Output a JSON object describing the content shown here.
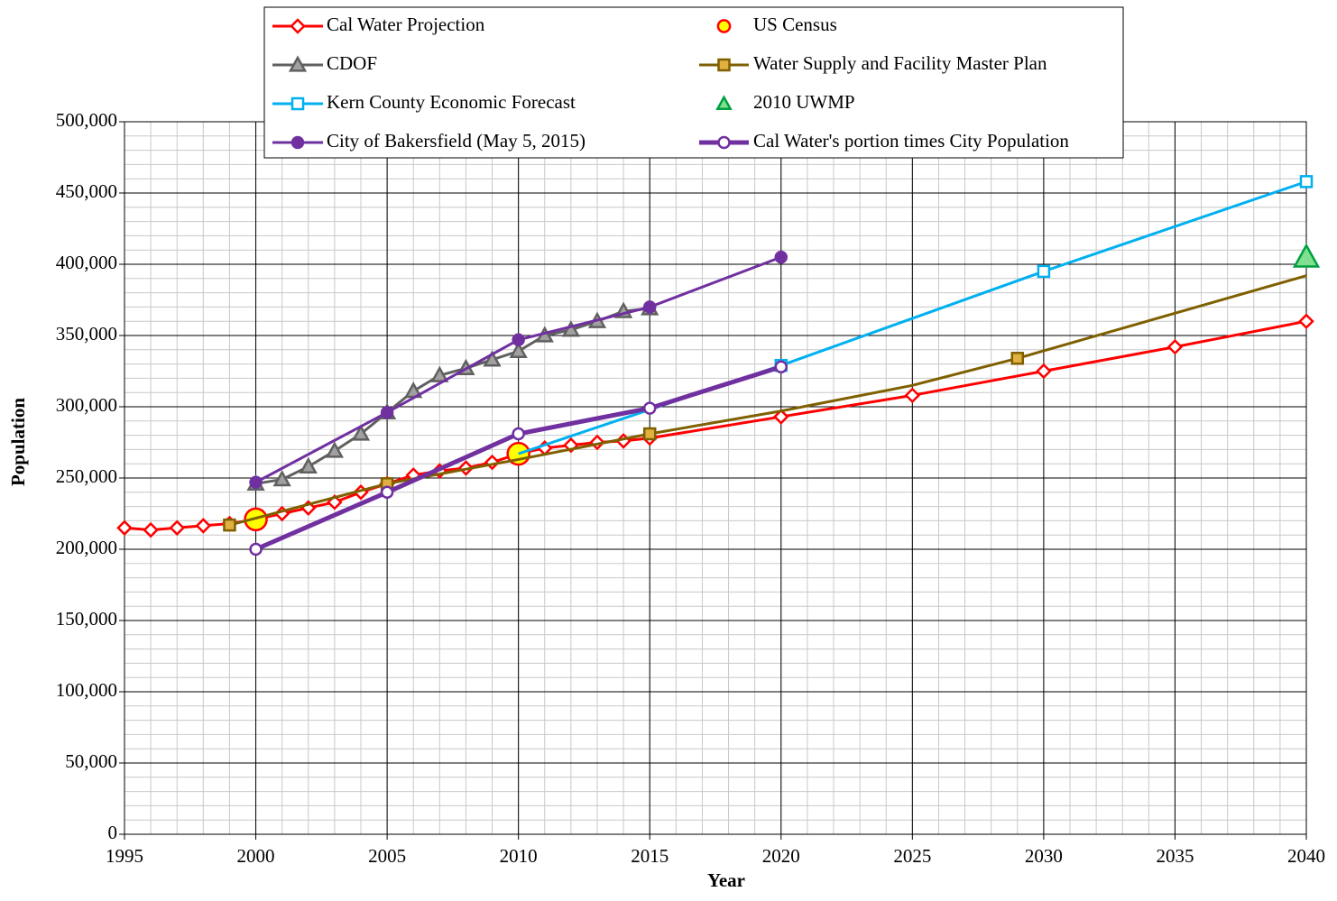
{
  "chart_data": {
    "type": "line",
    "xlabel": "Year",
    "ylabel": "Population",
    "xlim": [
      1995,
      2040
    ],
    "xticks": [
      1995,
      2000,
      2005,
      2010,
      2015,
      2020,
      2025,
      2030,
      2035,
      2040
    ],
    "ylim": [
      0,
      500000
    ],
    "yticks": [
      {
        "value": 0,
        "label": "0"
      },
      {
        "value": 50000,
        "label": "50,000"
      },
      {
        "value": 100000,
        "label": "100,000"
      },
      {
        "value": 150000,
        "label": "150,000"
      },
      {
        "value": 200000,
        "label": "200,000"
      },
      {
        "value": 250000,
        "label": "250,000"
      },
      {
        "value": 300000,
        "label": "300,000"
      },
      {
        "value": 350000,
        "label": "350,000"
      },
      {
        "value": 400000,
        "label": "400,000"
      },
      {
        "value": 450000,
        "label": "450,000"
      },
      {
        "value": 500000,
        "label": "500,000"
      }
    ],
    "grid": true,
    "minor_xstep": 1,
    "minor_ystep": 10000,
    "legend": "top",
    "series": [
      {
        "name": "Cal Water Projection",
        "color": "#ff0000",
        "marker": "diamond",
        "marker_fill": "#ffffff",
        "line": true,
        "line_width": 3,
        "marker_size": 7,
        "x": [
          1995,
          1996,
          1997,
          1998,
          1999,
          2000,
          2001,
          2002,
          2003,
          2004,
          2005,
          2006,
          2007,
          2008,
          2009,
          2010,
          2011,
          2012,
          2013,
          2014,
          2015,
          2020,
          2025,
          2030,
          2035,
          2040
        ],
        "values": [
          215000,
          213500,
          215000,
          216500,
          218000,
          221000,
          225000,
          229000,
          233000,
          240000,
          246000,
          252000,
          255000,
          257000,
          261000,
          267000,
          271000,
          273000,
          275000,
          276000,
          278000,
          293000,
          308000,
          325000,
          342000,
          360000
        ]
      },
      {
        "name": "US Census",
        "color": "#ff0000",
        "marker": "circle",
        "marker_fill": "#ffff00",
        "line": false,
        "line_width": 2,
        "marker_size": 12,
        "x": [
          2000,
          2010
        ],
        "values": [
          221000,
          267000
        ]
      },
      {
        "name": "CDOF",
        "color": "#606060",
        "marker": "triangle",
        "marker_fill": "#a0a0a0",
        "line": true,
        "line_width": 3,
        "marker_size": 8,
        "x": [
          2000,
          2001,
          2002,
          2003,
          2004,
          2005,
          2006,
          2007,
          2008,
          2009,
          2010,
          2011,
          2012,
          2013,
          2014,
          2015
        ],
        "values": [
          246000,
          249000,
          258000,
          269000,
          281000,
          296000,
          311000,
          322000,
          327000,
          333000,
          339000,
          350000,
          354000,
          360000,
          367000,
          369000
        ]
      },
      {
        "name": "Water Supply and Facility Master Plan",
        "color": "#7f6000",
        "marker": "square",
        "marker_fill": "#e0b040",
        "line": true,
        "line_width": 3,
        "marker_size": 6,
        "x": [
          1999,
          2005,
          2010,
          2015,
          2020,
          2025,
          2029,
          2040
        ],
        "values": [
          217000,
          246000,
          263000,
          281000,
          297000,
          315000,
          334000,
          392000
        ],
        "show_marker": [
          true,
          true,
          false,
          true,
          false,
          false,
          true,
          false
        ]
      },
      {
        "name": "Kern County Economic Forecast",
        "color": "#00b0f0",
        "marker": "square",
        "marker_fill": "#ffffff",
        "line": true,
        "line_width": 3,
        "marker_size": 6,
        "x": [
          2010,
          2015,
          2020,
          2030,
          2040
        ],
        "values": [
          267000,
          298000,
          329000,
          395000,
          458000
        ],
        "show_marker": [
          false,
          false,
          true,
          true,
          true
        ]
      },
      {
        "name": "2010 UWMP",
        "color": "#00a040",
        "marker": "triangle",
        "marker_fill": "#80e090",
        "line": false,
        "line_width": 3,
        "marker_size": 13,
        "x": [
          2040
        ],
        "values": [
          405000
        ]
      },
      {
        "name": "City of Bakersfield (May 5, 2015)",
        "color": "#7030a0",
        "marker": "circle",
        "marker_fill": "#7030a0",
        "line": true,
        "line_width": 3,
        "marker_size": 6,
        "x": [
          2000,
          2005,
          2010,
          2015,
          2020
        ],
        "values": [
          247000,
          296000,
          347000,
          370000,
          405000
        ]
      },
      {
        "name": "Cal Water's portion times City Population",
        "color": "#7030a0",
        "marker": "circle",
        "marker_fill": "#ffffff",
        "line": true,
        "line_width": 5,
        "marker_size": 6,
        "x": [
          2000,
          2005,
          2010,
          2015,
          2020
        ],
        "values": [
          200000,
          240000,
          281000,
          299000,
          328000
        ]
      }
    ]
  }
}
